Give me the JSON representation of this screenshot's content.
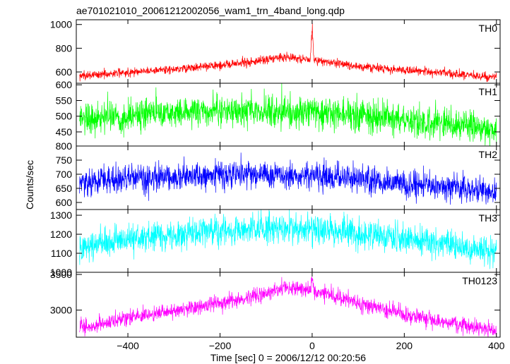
{
  "title": "ae701021010_20061212002056_wam1_trn_4band_long.qdp",
  "xlabel": "Time [sec] 0 = 2006/12/12 00:20:56",
  "ylabel": "Counts/sec",
  "colors": {
    "frame": "#000000",
    "background": "#ffffff"
  },
  "chart_data": {
    "type": "line",
    "shared_x": true,
    "xlim": [
      -512,
      408
    ],
    "xticks": [
      -400,
      -200,
      0,
      200,
      400
    ],
    "xtick_labels": [
      "−400",
      "−200",
      "0",
      "200",
      "400"
    ],
    "x_sample_step_sec": 0.5,
    "panels": [
      {
        "name": "TH0",
        "color": "#ff0000",
        "ylim": [
          505,
          1040
        ],
        "yticks": [
          600,
          800,
          1000
        ],
        "ytick_labels": [
          "600",
          "800",
          "1000"
        ],
        "trend": {
          "x": [
            -505,
            -400,
            -300,
            -200,
            -100,
            -60,
            0,
            100,
            200,
            300,
            400
          ],
          "y": [
            565,
            598,
            625,
            655,
            702,
            730,
            700,
            650,
            615,
            585,
            555
          ]
        },
        "noise_sd": 18,
        "features": [
          {
            "x": 0,
            "y_peak": 1040,
            "width_sec": 4
          }
        ]
      },
      {
        "name": "TH1",
        "color": "#00ff00",
        "ylim": [
          405,
          605
        ],
        "yticks": [
          450,
          500,
          550,
          600
        ],
        "ytick_labels": [
          "450",
          "500",
          "550",
          "600"
        ],
        "trend": {
          "x": [
            -505,
            -400,
            -300,
            -200,
            -100,
            0,
            100,
            200,
            300,
            400
          ],
          "y": [
            492,
            504,
            512,
            516,
            516,
            512,
            500,
            488,
            474,
            458
          ]
        },
        "noise_sd": 25,
        "features": []
      },
      {
        "name": "TH2",
        "color": "#0000ff",
        "ylim": [
          575,
          800
        ],
        "yticks": [
          600,
          650,
          700,
          750,
          800
        ],
        "ytick_labels": [
          "600",
          "650",
          "700",
          "750",
          "800"
        ],
        "trend": {
          "x": [
            -505,
            -400,
            -300,
            -200,
            -100,
            0,
            100,
            200,
            300,
            400
          ],
          "y": [
            668,
            684,
            692,
            697,
            700,
            694,
            680,
            666,
            652,
            634
          ]
        },
        "noise_sd": 24,
        "features": []
      },
      {
        "name": "TH3",
        "color": "#00ffff",
        "ylim": [
          1000,
          1330
        ],
        "yticks": [
          1000,
          1100,
          1200,
          1300
        ],
        "ytick_labels": [
          "1000",
          "1100",
          "1200",
          "1300"
        ],
        "trend": {
          "x": [
            -505,
            -400,
            -300,
            -200,
            -100,
            0,
            100,
            200,
            300,
            400
          ],
          "y": [
            1140,
            1175,
            1200,
            1218,
            1232,
            1228,
            1205,
            1178,
            1140,
            1100
          ]
        },
        "noise_sd": 38,
        "features": []
      },
      {
        "name": "TH0123",
        "color": "#ff00ff",
        "ylim": [
          2620,
          3530
        ],
        "yticks": [
          3000,
          3500
        ],
        "ytick_labels": [
          "3000",
          "3500"
        ],
        "trend": {
          "x": [
            -505,
            -400,
            -300,
            -200,
            -100,
            -60,
            0,
            100,
            200,
            300,
            400
          ],
          "y": [
            2750,
            2880,
            3000,
            3100,
            3240,
            3320,
            3270,
            3100,
            2950,
            2820,
            2700
          ]
        },
        "noise_sd": 55,
        "features": [
          {
            "x": 0,
            "y_peak": 3480,
            "width_sec": 4
          }
        ]
      }
    ]
  }
}
